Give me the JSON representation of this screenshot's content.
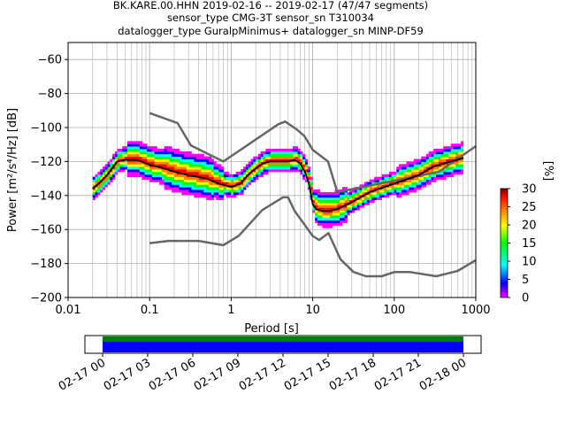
{
  "chart_data": {
    "type": "heatmap",
    "title_lines": [
      "BK.KARE.00.HHN   2019-02-16 -- 2019-02-17  (47/47 segments)",
      "sensor_type CMG-3T sensor_sn T310034",
      "datalogger_type GuralpMinimus+ datalogger_sn MINP-DF59"
    ],
    "xlabel": "Period [s]",
    "ylabel": "Power [m²/s⁴/Hz] [dB]",
    "x_scale": "log",
    "xlim": [
      0.01,
      1000
    ],
    "ylim": [
      -200,
      -50
    ],
    "x_tick_labels": [
      "0.01",
      "0.1",
      "1",
      "10",
      "100",
      "1000"
    ],
    "y_tick_labels": [
      "−60",
      "−80",
      "−100",
      "−120",
      "−140",
      "−160",
      "−180",
      "−200"
    ],
    "grid": true,
    "colorbar": {
      "label": "[%]",
      "range": [
        0,
        30
      ],
      "tick_labels": [
        "0",
        "5",
        "10",
        "15",
        "20",
        "25",
        "30"
      ]
    },
    "series": [
      {
        "name": "",
        "role": "median",
        "color": "#000000",
        "x": [
          0.02,
          0.025,
          0.03,
          0.04,
          0.05,
          0.07,
          0.1,
          0.15,
          0.2,
          0.3,
          0.5,
          0.7,
          1.0,
          1.3,
          1.6,
          2.0,
          2.5,
          3.0,
          4.0,
          5.0,
          6.0,
          7.0,
          8.0,
          9.0,
          10,
          11,
          13,
          16,
          20,
          30,
          50,
          100,
          200,
          300,
          500,
          700
        ],
        "y": [
          -136,
          -132,
          -128,
          -120,
          -119,
          -119,
          -122,
          -124,
          -126,
          -128,
          -130,
          -133,
          -135,
          -133,
          -128,
          -124,
          -121,
          -120,
          -120,
          -120,
          -119,
          -121,
          -126,
          -133,
          -145,
          -148,
          -149,
          -149,
          -148,
          -144,
          -138,
          -133,
          -128,
          -123,
          -120,
          -118
        ]
      },
      {
        "name": "",
        "role": "upper noise model",
        "color": "#666666",
        "x": [
          0.1,
          0.22,
          0.32,
          0.8,
          3.8,
          4.6,
          6.3,
          7.9,
          10,
          15.4,
          20,
          354.8,
          1000
        ],
        "y": [
          -91.5,
          -97.4,
          -110.5,
          -120,
          -98,
          -96.5,
          -101,
          -105,
          -113.1,
          -120,
          -138,
          -126,
          -111
        ]
      },
      {
        "name": "",
        "role": "lower noise model",
        "color": "#666666",
        "x": [
          0.1,
          0.17,
          0.4,
          0.8,
          1.24,
          2.4,
          4.3,
          5.0,
          6.0,
          10,
          12,
          15.6,
          21.9,
          31.6,
          45,
          70,
          101,
          154,
          328,
          600,
          1000
        ],
        "y": [
          -168,
          -166.7,
          -166.7,
          -169.2,
          -163.7,
          -148.6,
          -141.1,
          -141.1,
          -149,
          -163.8,
          -166.2,
          -162.1,
          -177.5,
          -185,
          -187.5,
          -187.5,
          -185,
          -185,
          -187.5,
          -184.4,
          -178
        ]
      }
    ]
  },
  "time_axis": {
    "tick_labels": [
      "02-17 00",
      "02-17 03",
      "02-17 06",
      "02-17 09",
      "02-17 12",
      "02-17 15",
      "02-17 18",
      "02-17 21",
      "02-18 00"
    ],
    "coverage_colors": [
      "#008000",
      "#0000ff"
    ]
  },
  "colors": {
    "grid": "#b0b0b0",
    "model_line": "#666666",
    "median": "#000000",
    "colormap": [
      "#ff00ff",
      "#0000ff",
      "#00ffff",
      "#00ff00",
      "#ffff00",
      "#ff8000",
      "#ff0000",
      "#800000"
    ]
  }
}
